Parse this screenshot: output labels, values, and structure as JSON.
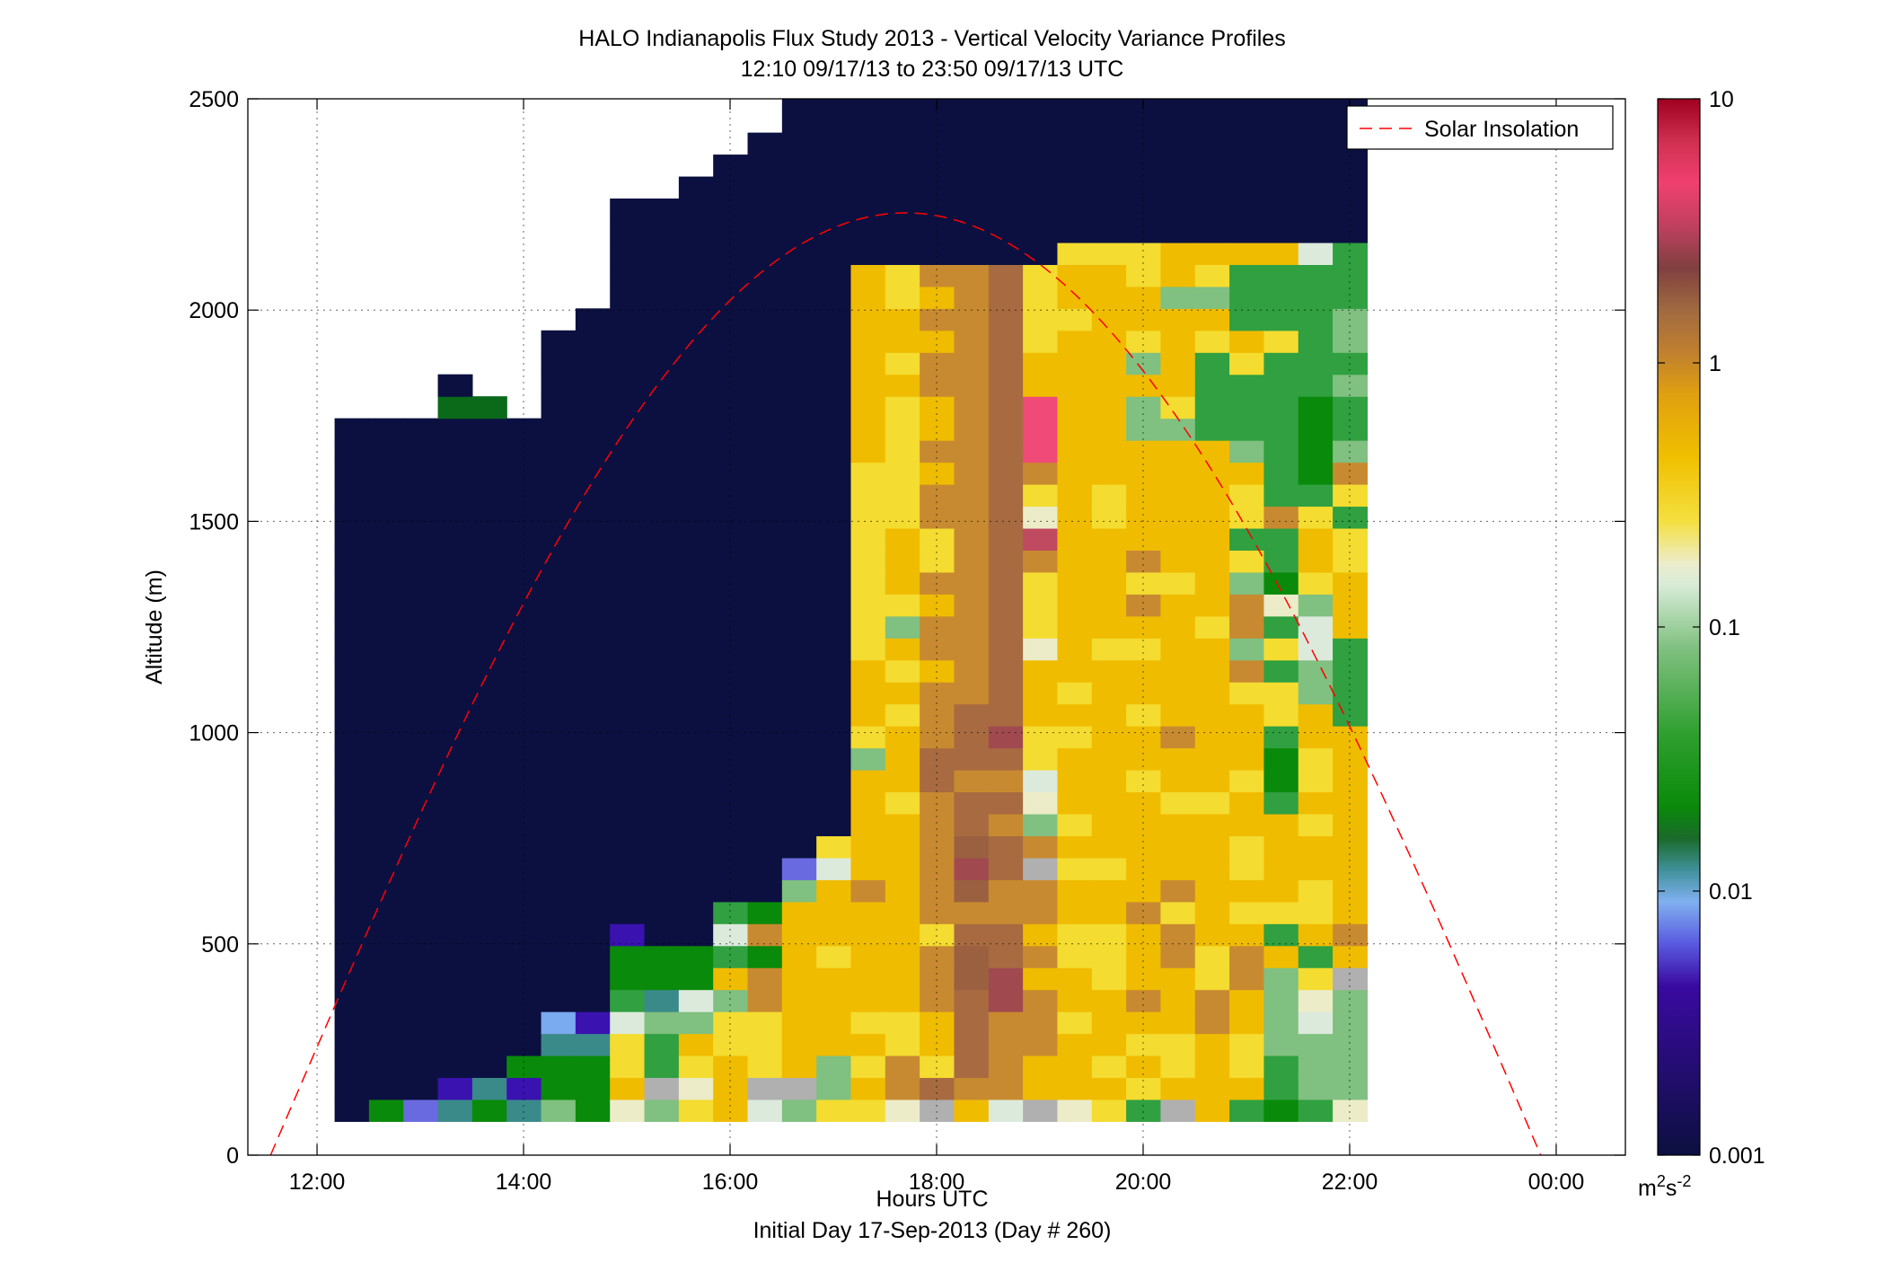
{
  "chart_data": {
    "type": "heatmap",
    "title": "HALO Indianapolis Flux Study 2013 - Vertical Velocity Variance Profiles",
    "subtitle": "12:10 09/17/13 to 23:50 09/17/13  UTC",
    "xlabel": "Hours UTC",
    "xlabel2": "Initial Day 17-Sep-2013 (Day # 260)",
    "ylabel": "Altitude (m)",
    "xlim_hours": [
      11.33,
      24.67
    ],
    "ylim": [
      0,
      2500
    ],
    "xticks": [
      {
        "value": 12,
        "label": "12:00"
      },
      {
        "value": 14,
        "label": "14:00"
      },
      {
        "value": 16,
        "label": "16:00"
      },
      {
        "value": 18,
        "label": "18:00"
      },
      {
        "value": 20,
        "label": "20:00"
      },
      {
        "value": 22,
        "label": "22:00"
      },
      {
        "value": 24,
        "label": "00:00"
      }
    ],
    "yticks": [
      {
        "value": 0,
        "label": "0"
      },
      {
        "value": 500,
        "label": "500"
      },
      {
        "value": 1000,
        "label": "1000"
      },
      {
        "value": 1500,
        "label": "1500"
      },
      {
        "value": 2000,
        "label": "2000"
      },
      {
        "value": 2500,
        "label": "2500"
      }
    ],
    "grid": true,
    "legend": {
      "position": "top-right",
      "entries": [
        {
          "name": "Solar Insolation",
          "color": "#ff0000",
          "style": "dashed"
        }
      ]
    },
    "colorbar": {
      "scale": "log",
      "range": [
        0.001,
        10
      ],
      "ticks": [
        {
          "value": 0.001,
          "label": "0.001"
        },
        {
          "value": 0.01,
          "label": "0.01"
        },
        {
          "value": 0.1,
          "label": "0.1"
        },
        {
          "value": 1,
          "label": "1"
        },
        {
          "value": 10,
          "label": "10"
        }
      ],
      "unit_base": "m",
      "unit_sup1": "2",
      "unit_mid": "s",
      "unit_sup2": "-2",
      "stops": [
        [
          0,
          "#0c1040"
        ],
        [
          0.16,
          "#3a0aa0"
        ],
        [
          0.2,
          "#5a5ae0"
        ],
        [
          0.24,
          "#80b0f0"
        ],
        [
          0.27,
          "#40909a"
        ],
        [
          0.3,
          "#1a6a2a"
        ],
        [
          0.33,
          "#0a8a0a"
        ],
        [
          0.4,
          "#30a030"
        ],
        [
          0.48,
          "#80c080"
        ],
        [
          0.54,
          "#d8ecd8"
        ],
        [
          0.56,
          "#ececcc"
        ],
        [
          0.6,
          "#f4e040"
        ],
        [
          0.66,
          "#f0c000"
        ],
        [
          0.72,
          "#e0a010"
        ],
        [
          0.76,
          "#c08030"
        ],
        [
          0.8,
          "#a06a40"
        ],
        [
          0.84,
          "#804040"
        ],
        [
          0.88,
          "#c04060"
        ],
        [
          0.92,
          "#f04070"
        ],
        [
          0.96,
          "#d03050"
        ],
        [
          1,
          "#a00020"
        ]
      ]
    },
    "solar_insolation": {
      "start_hour": 11.55,
      "end_hour": 23.85,
      "peak_hour": 17.7,
      "peak_altitude": 2230
    },
    "grid_cells": {
      "t0_hour": 12.17,
      "dt_hour": 0.3333,
      "z0": 80,
      "dz": 52,
      "palette": {
        "N": "#0c1040",
        "P": "#3a12b0",
        "L": "#6a6ae0",
        "B": "#7aaaf0",
        "T": "#3a8a8a",
        "D": "#0a6a1a",
        "G": "#0a8a0a",
        "M": "#30a040",
        "H": "#80c080",
        "W": "#dceadc",
        "C": "#ececc8",
        "E": "#b0b0b0",
        "Y": "#f4dc30",
        "O": "#f0bc00",
        "A": "#d8a020",
        "K": "#c88a30",
        "R": "#a86a40",
        "S": "#9a6040",
        "Q": "#a04a50",
        "X": "#c04a60",
        "Z": "#f04a78"
      },
      "columns": [
        "NNNNNNNNNNNNNNNNNNNNNNNNNNNNNNNN.......................................",
        "GNNNNNNNNNNNNNNNNNNNNNNNNNNNNNNN...................................................",
        "LNNNNNNNNNNNNNNNNNNNNNNNNNNNNNNN......................................................",
        "TPNNNNNNNNNNNNNNNNNNNNNNNNNNNNNNDN..............................................",
        "GTNNNNNNNNNNNNNNNNNNNNNNNNNNNNNND.......................................................",
        "TPGNNNNNNNNNNNNNNNNNNNNNNNNNNNNN.....................................................",
        "HGGTBNNNNNNNNNNNNNNNNNNNNNNNNNNNNNNN.........................................",
        "GGGTPNNNNNNNNNNNNNNNNNNNNNNNNNNNNNNNN............................................",
        "COYYWMGGPNNNNNNNNNNNNNNNNNNNNNNNNNNNNNNNNN......................................",
        "HEMMHTGGNNNNNNNNNNNNNNNNNNNNNNNNNNNNNNNNNN..........................................",
        "YCYOHWGGNNNNNNNNNNNNNNNNNNNNNNNNNNNNNNNNNNN.................................................",
        "OOOYYHOMWMNNNNNNNNNNNNNNNNNNNNNNNNNNNNNNNNNN...........................................",
        "WEYYYKKGKGNNNNNNNNNNNNNNNNNNNNNNNNNNNNNNNNNNN.......................................",
        "HEOOOOOOOOHLNNNNNNNNNNNNNNNNNNNNNNNNNNNNNNNNNNN.........................................",
        "YHHOOOOYOOOWYNNNNNNNNNNNNNNNNNNNNNNNNNNNNNNNNNNNN...............................",
        "YOYOYOOOOOKOOOOOHYOOOYYYYYYYYYOOOOOOOOONNNNNNNNN..............................",
        "CKKYYOOOOOOOOOYOOOYOYOHYOOOYYYYYYOYOOYYNNNNNNNNN..........................",
        "ERYOOKKKYKKKKKKRRKKKOKKOKYYKKOKOOKKOKOKNNNNNNNNNNN..........................",
        "OKRRRRSSRKSQSRRKRRRKKKKKKKKKKKKKKKKKKKKNNNNNNNNNN.............................",
        "WKKKKQQRRKKRRKRKRQRRRRRRRRRRRRRRRRRRRRRNNNNNNNNNNNNNN....................",
        "EOOKKKOKOKKEKHCWYYOOOCYYYKXCYKZZZOOYYYYNNNNNNNNNNNNNN...................",
        "COOOYOOYYOOYOYOOOYOYOOOOOOOOOOOOOOOOYOOYNNNNNNNNNNNNNN...............",
        "YOYOOOYYYOOYOOOOOOOOOYOOOOOYYOOOOOOOOOOYNNNNNNNNNNNNNNN.............",
        "MYOYOKOOOKOOOOOYOOYOOYOKYKOOOOOHHOHYOOYYNNNNNNNNNNNNNNN............",
        "EOYYOOOKKYKOOOYOOKOOOOOOYOOOOOOHYOOOOHOONNNNNNNNNNNNNNN..........",
        "OOOOKKYYOOOOOOYOOOOOOOYOOOOOOOOMMMMYOHYONNNNNNNNNNNNNNN.........",
        "MOYYOOKKOYOYYOOYOOOYKHKKHYMYYOHMMMYOMMMONNNNNNNNNNNNNNN.....",
        "GMMHHHHOMYOOOOMGGMYYMYMCGMMKMMMMMMMYMMMONNNNNNNNNNNNNNN..",
        "MHHHWCYMOYYOOYOYYOOHHWWHYOOYMGGGGMMMMMMWNNNNNNNNNNNNNNN....",
        "CHHHHHEOKOOOOOOOOOMMMMOOOYYMYKHMMHMHHMMMNNNNNNNNNNNNNNNN....."
      ]
    }
  }
}
